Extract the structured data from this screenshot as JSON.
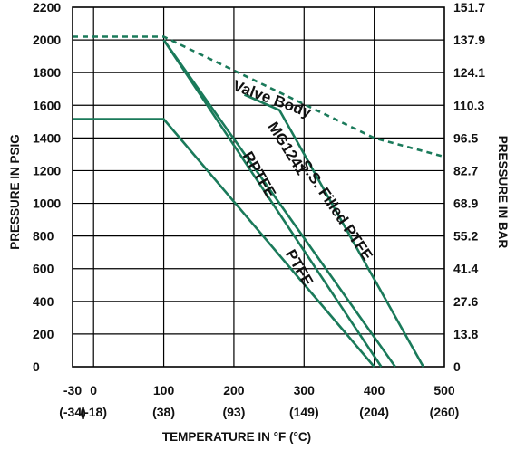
{
  "chart_data": {
    "type": "line",
    "xlabel": "TEMPERATURE IN °F (°C)",
    "ylabel_left": "PRESSURE IN PSIG",
    "ylabel_right": "PRESSURE IN BAR",
    "x_ticks": [
      {
        "value": -30,
        "label": "-30",
        "sublabel": "(-34)"
      },
      {
        "value": 0,
        "label": "0",
        "sublabel": "(-18)"
      },
      {
        "value": 100,
        "label": "100",
        "sublabel": "(38)"
      },
      {
        "value": 200,
        "label": "200",
        "sublabel": "(93)"
      },
      {
        "value": 300,
        "label": "300",
        "sublabel": "(149)"
      },
      {
        "value": 400,
        "label": "400",
        "sublabel": "(204)"
      },
      {
        "value": 500,
        "label": "500",
        "sublabel": "(260)"
      }
    ],
    "y_ticks_left": [
      {
        "value": 0,
        "label": "0"
      },
      {
        "value": 200,
        "label": "200"
      },
      {
        "value": 400,
        "label": "400"
      },
      {
        "value": 600,
        "label": "600"
      },
      {
        "value": 800,
        "label": "800"
      },
      {
        "value": 1000,
        "label": "1000"
      },
      {
        "value": 1200,
        "label": "1200"
      },
      {
        "value": 1400,
        "label": "1400"
      },
      {
        "value": 1600,
        "label": "1600"
      },
      {
        "value": 1800,
        "label": "1800"
      },
      {
        "value": 2000,
        "label": "2000"
      },
      {
        "value": 2200,
        "label": "2200"
      }
    ],
    "y_ticks_right": [
      {
        "value": 0,
        "label": "0"
      },
      {
        "value": 200,
        "label": "13.8"
      },
      {
        "value": 400,
        "label": "27.6"
      },
      {
        "value": 600,
        "label": "41.4"
      },
      {
        "value": 800,
        "label": "55.2"
      },
      {
        "value": 1000,
        "label": "68.9"
      },
      {
        "value": 1200,
        "label": "82.7"
      },
      {
        "value": 1400,
        "label": "96.5"
      },
      {
        "value": 1600,
        "label": "110.3"
      },
      {
        "value": 1800,
        "label": "124.1"
      },
      {
        "value": 2000,
        "label": "137.9"
      },
      {
        "value": 2200,
        "label": "151.7"
      }
    ],
    "xlim": [
      -30,
      500
    ],
    "ylim": [
      0,
      2200
    ],
    "grid": true,
    "line_color": "#1a7a5a",
    "series": [
      {
        "name": "Valve Body",
        "style": "dashed",
        "points": [
          [
            -30,
            2020
          ],
          [
            100,
            2020
          ],
          [
            400,
            1400
          ],
          [
            500,
            1285
          ]
        ],
        "label_pos": {
          "x": 252,
          "y": 1610,
          "angle_deg": 20
        }
      },
      {
        "name": "PTFE",
        "style": "solid",
        "points": [
          [
            -30,
            1515
          ],
          [
            100,
            1515
          ],
          [
            400,
            0
          ]
        ],
        "label_pos": {
          "x": 287,
          "y": 590,
          "angle_deg": 60
        }
      },
      {
        "name": "RPTFE",
        "style": "solid",
        "points": [
          [
            100,
            2000
          ],
          [
            410,
            0
          ]
        ],
        "label_pos": {
          "x": 230,
          "y": 1160,
          "angle_deg": 60
        }
      },
      {
        "name": "MG1241",
        "style": "solid",
        "points": [
          [
            100,
            2000
          ],
          [
            430,
            0
          ]
        ],
        "label_pos": {
          "x": 270,
          "y": 1320,
          "angle_deg": 58
        }
      },
      {
        "name": "S.S. Filled PTFE",
        "style": "solid",
        "points": [
          [
            215,
            1665
          ],
          [
            265,
            1570
          ],
          [
            470,
            0
          ]
        ],
        "label_pos": {
          "x": 340,
          "y": 940,
          "angle_deg": 56
        }
      }
    ]
  }
}
